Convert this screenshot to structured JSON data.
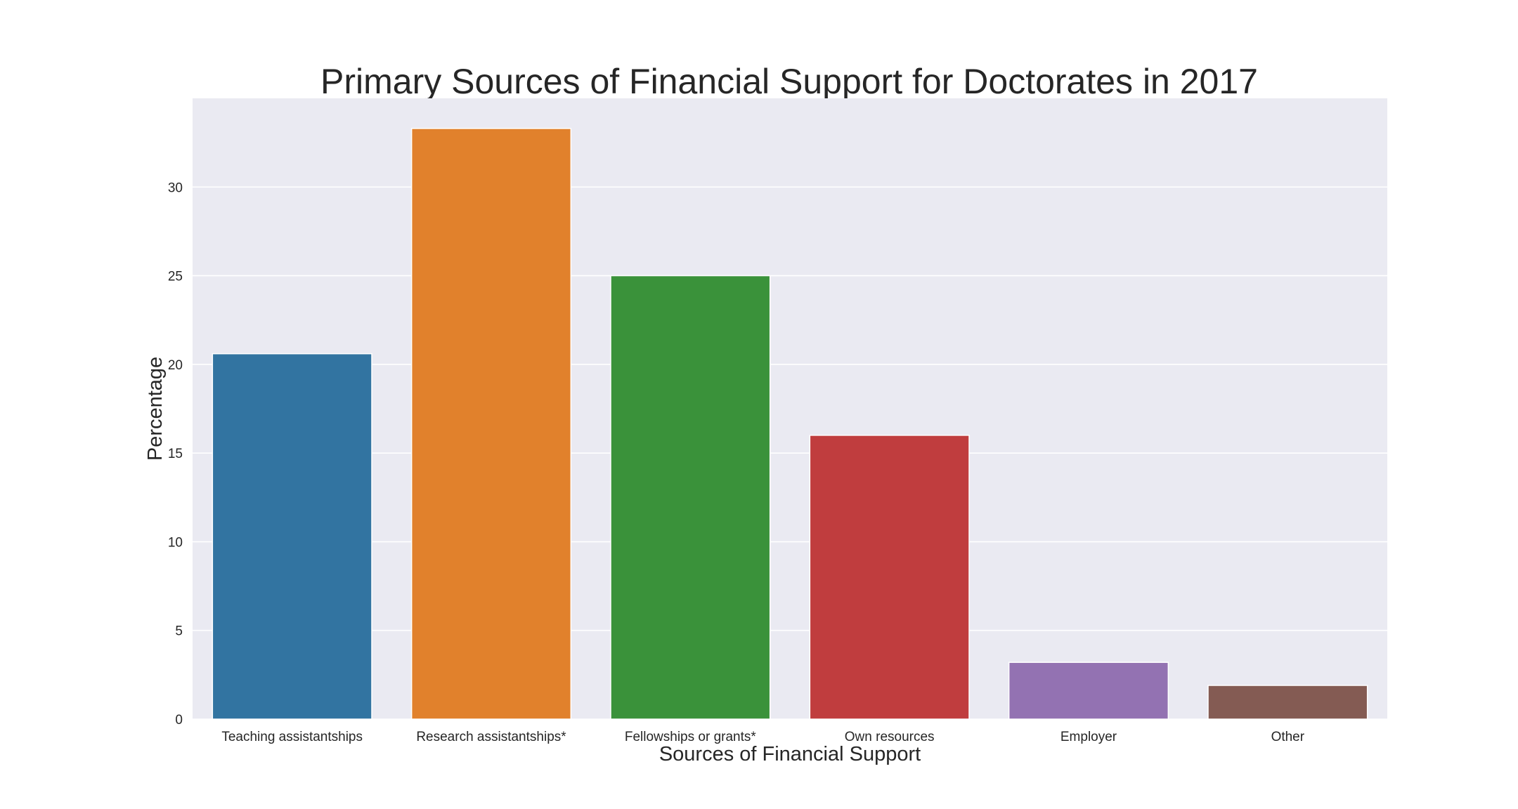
{
  "chart_data": {
    "type": "bar",
    "title": "Primary Sources of Financial Support for Doctorates in 2017",
    "xlabel": "Sources of Financial Support",
    "ylabel": "Percentage",
    "categories": [
      "Teaching assistantships",
      "Research assistantships*",
      "Fellowships or grants*",
      "Own resources",
      "Employer",
      "Other"
    ],
    "values": [
      20.6,
      33.3,
      25.0,
      16.0,
      3.2,
      1.9
    ],
    "colors": [
      "#3274a1",
      "#e1812c",
      "#3a923a",
      "#c03d3e",
      "#9372b2",
      "#845b53"
    ],
    "ylim": [
      0,
      35
    ],
    "yticks": [
      0,
      5,
      10,
      15,
      20,
      25,
      30
    ],
    "grid": true,
    "legend": "none",
    "background_color": "#eaeaf2"
  }
}
